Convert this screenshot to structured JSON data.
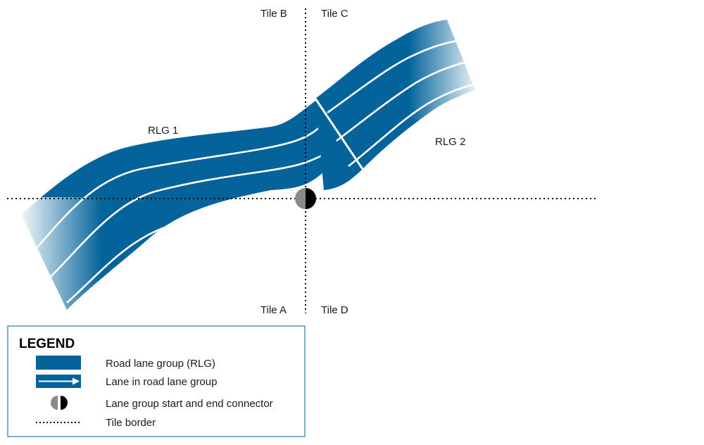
{
  "colors": {
    "road": "#03639a",
    "lane": "#ffffff",
    "border": "#000000",
    "legend_frame": "#2a7aa8",
    "connector_start": "#8a8a8a",
    "connector_end": "#000000"
  },
  "tiles": {
    "a": "Tile A",
    "b": "Tile B",
    "c": "Tile C",
    "d": "Tile D"
  },
  "groups": {
    "rlg1": "RLG 1",
    "rlg2": "RLG 2"
  },
  "legend": {
    "title": "LEGEND",
    "items": [
      {
        "icon": "road-swatch-icon",
        "label": "Road lane group (RLG)"
      },
      {
        "icon": "lane-arrow-icon",
        "label": "Lane in road lane group"
      },
      {
        "icon": "connector-icon",
        "label": "Lane group start and end connector"
      },
      {
        "icon": "dotted-line-icon",
        "label": "Tile border"
      }
    ]
  }
}
